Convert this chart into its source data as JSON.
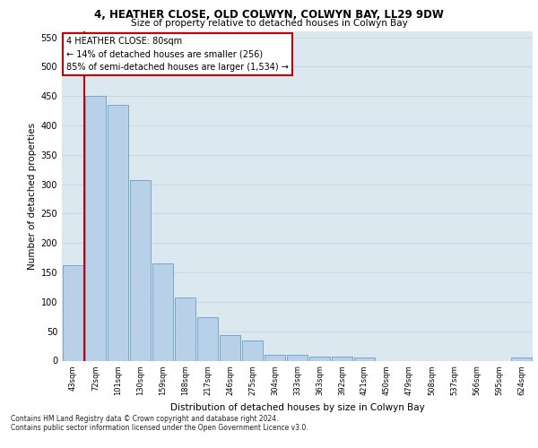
{
  "title1": "4, HEATHER CLOSE, OLD COLWYN, COLWYN BAY, LL29 9DW",
  "title2": "Size of property relative to detached houses in Colwyn Bay",
  "xlabel": "Distribution of detached houses by size in Colwyn Bay",
  "ylabel": "Number of detached properties",
  "categories": [
    "43sqm",
    "72sqm",
    "101sqm",
    "130sqm",
    "159sqm",
    "188sqm",
    "217sqm",
    "246sqm",
    "275sqm",
    "304sqm",
    "333sqm",
    "363sqm",
    "392sqm",
    "421sqm",
    "450sqm",
    "479sqm",
    "508sqm",
    "537sqm",
    "566sqm",
    "595sqm",
    "624sqm"
  ],
  "values": [
    163,
    450,
    435,
    307,
    166,
    107,
    74,
    43,
    35,
    10,
    10,
    7,
    7,
    6,
    0,
    0,
    0,
    0,
    0,
    0,
    5
  ],
  "bar_color": "#b8d0e8",
  "bar_edge_color": "#6a9fc8",
  "vline_color": "#cc0000",
  "annotation_text": "4 HEATHER CLOSE: 80sqm\n← 14% of detached houses are smaller (256)\n85% of semi-detached houses are larger (1,534) →",
  "annotation_box_color": "#ffffff",
  "annotation_box_edge": "#cc0000",
  "grid_color": "#c8d8ea",
  "background_color": "#dce8f0",
  "footer1": "Contains HM Land Registry data © Crown copyright and database right 2024.",
  "footer2": "Contains public sector information licensed under the Open Government Licence v3.0.",
  "ylim": [
    0,
    560
  ],
  "yticks": [
    0,
    50,
    100,
    150,
    200,
    250,
    300,
    350,
    400,
    450,
    500,
    550
  ]
}
